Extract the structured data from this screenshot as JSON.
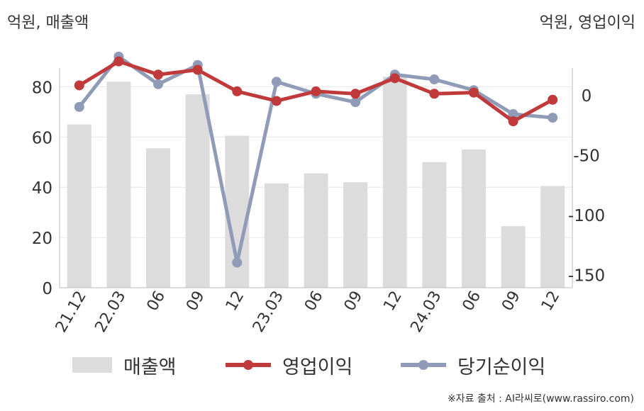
{
  "labels": {
    "left_unit": "억원, 매출액",
    "right_unit": "억원, 영업이익",
    "source": "※자료 출처 : AI라씨로(www.rassiro.com)"
  },
  "chart_data": {
    "type": "bar+line",
    "categories": [
      "21.12",
      "22.03",
      "06",
      "09",
      "12",
      "23.03",
      "06",
      "09",
      "12",
      "24.03",
      "06",
      "09",
      "12"
    ],
    "left_axis": {
      "label": "억원, 매출액",
      "range": [
        0,
        95
      ],
      "ticks": [
        0,
        20,
        40,
        60,
        80
      ]
    },
    "right_axis": {
      "label": "억원, 영업이익",
      "range": [
        -160,
        30
      ],
      "ticks": [
        0,
        -50,
        -100,
        -150
      ]
    },
    "series": [
      {
        "name": "매출액",
        "type": "bar",
        "axis": "left",
        "color": "#dcdcdc",
        "values": [
          65,
          82,
          55.5,
          77,
          60.5,
          41.5,
          45.5,
          42,
          84,
          50,
          55,
          24.5,
          40.5
        ]
      },
      {
        "name": "영업이익",
        "type": "line",
        "axis": "right",
        "color": "#c0393b",
        "values": [
          8,
          28,
          17,
          21,
          3,
          -5,
          3,
          1,
          14,
          1,
          2,
          -22,
          -4
        ]
      },
      {
        "name": "당기순이익",
        "type": "line",
        "axis": "right",
        "color": "#8f9bb7",
        "values": [
          -10,
          32,
          9,
          25,
          -140,
          11,
          1,
          -6,
          17,
          13,
          4,
          -16,
          -19
        ]
      }
    ],
    "grid": true,
    "legend_position": "bottom"
  }
}
